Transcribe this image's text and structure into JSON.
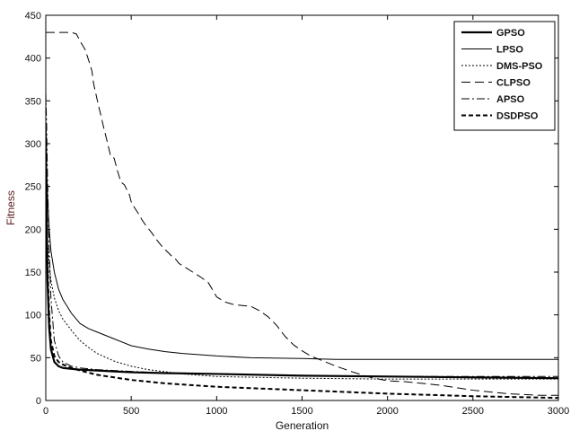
{
  "chart_data": {
    "type": "line",
    "title": "",
    "xlabel": "Generation",
    "ylabel": "Fitness",
    "xlim": [
      0,
      3000
    ],
    "ylim": [
      0,
      450
    ],
    "xticks": [
      0,
      500,
      1000,
      1500,
      2000,
      2500,
      3000
    ],
    "yticks": [
      0,
      50,
      100,
      150,
      200,
      250,
      300,
      350,
      400,
      450
    ],
    "grid": false,
    "legend_position": "top-right",
    "series": [
      {
        "name": "GPSO",
        "style": "solid-thick",
        "color": "#000000",
        "x": [
          0,
          5,
          10,
          20,
          30,
          50,
          75,
          100,
          150,
          200,
          300,
          400,
          500,
          700,
          1000,
          1500,
          2000,
          2500,
          3000
        ],
        "y": [
          310,
          220,
          140,
          85,
          60,
          45,
          40,
          38,
          37,
          36,
          35,
          34,
          33,
          32,
          31,
          29,
          28,
          27,
          26
        ]
      },
      {
        "name": "LPSO",
        "style": "solid-thin",
        "color": "#000000",
        "x": [
          0,
          5,
          10,
          20,
          30,
          50,
          75,
          100,
          150,
          200,
          250,
          300,
          400,
          500,
          600,
          700,
          800,
          1000,
          1200,
          1500,
          1700,
          2000,
          2500,
          3000
        ],
        "y": [
          300,
          270,
          240,
          200,
          175,
          150,
          130,
          118,
          102,
          90,
          84,
          80,
          72,
          64,
          60,
          57,
          55,
          52,
          50,
          49,
          48,
          48,
          48,
          48
        ]
      },
      {
        "name": "DMS-PSO",
        "style": "dotted",
        "color": "#000000",
        "x": [
          0,
          10,
          20,
          30,
          50,
          75,
          100,
          150,
          200,
          250,
          300,
          400,
          500,
          600,
          800,
          1000,
          1500,
          2000,
          2500,
          3000
        ],
        "y": [
          220,
          185,
          160,
          140,
          120,
          105,
          95,
          82,
          70,
          62,
          55,
          46,
          40,
          36,
          31,
          28,
          26,
          25,
          25,
          25
        ]
      },
      {
        "name": "CLPSO",
        "style": "long-dash",
        "color": "#000000",
        "x": [
          0,
          150,
          180,
          200,
          230,
          250,
          270,
          280,
          300,
          320,
          340,
          360,
          380,
          400,
          420,
          440,
          460,
          490,
          500,
          520,
          540,
          560,
          580,
          600,
          620,
          640,
          660,
          680,
          700,
          720,
          740,
          760,
          780,
          820,
          860,
          900,
          950,
          980,
          1000,
          1050,
          1100,
          1200,
          1250,
          1300,
          1350,
          1400,
          1450,
          1500,
          1550,
          1600,
          1700,
          1800,
          1900,
          2000,
          2100,
          2200,
          2300,
          2400,
          2500,
          2600,
          2700,
          2800,
          2900,
          3000
        ],
        "y": [
          430,
          430,
          428,
          420,
          410,
          398,
          385,
          370,
          352,
          335,
          318,
          302,
          285,
          283,
          268,
          255,
          252,
          240,
          232,
          225,
          219,
          212,
          206,
          201,
          196,
          190,
          185,
          180,
          176,
          172,
          168,
          165,
          160,
          155,
          150,
          145,
          138,
          128,
          121,
          115,
          112,
          110,
          105,
          98,
          88,
          75,
          65,
          58,
          52,
          48,
          40,
          33,
          27,
          23,
          22,
          20,
          18,
          15,
          12,
          10,
          8,
          7,
          6,
          6
        ]
      },
      {
        "name": "APSO",
        "style": "dash-dot",
        "color": "#000000",
        "x": [
          0,
          5,
          10,
          20,
          30,
          50,
          75,
          100,
          150,
          200,
          300,
          400,
          500,
          700,
          1000,
          1500,
          2000,
          2500,
          3000
        ],
        "y": [
          360,
          320,
          260,
          180,
          120,
          70,
          52,
          45,
          40,
          38,
          36,
          35,
          34,
          32,
          31,
          29,
          28,
          28,
          28
        ]
      },
      {
        "name": "DSDPSO",
        "style": "dashed-thick",
        "color": "#000000",
        "x": [
          0,
          5,
          10,
          20,
          30,
          50,
          75,
          100,
          150,
          200,
          300,
          400,
          500,
          700,
          1000,
          1500,
          2000,
          2500,
          3000
        ],
        "y": [
          315,
          230,
          160,
          100,
          70,
          52,
          45,
          42,
          38,
          35,
          30,
          27,
          24,
          20,
          16,
          12,
          8,
          5,
          3
        ]
      }
    ]
  }
}
